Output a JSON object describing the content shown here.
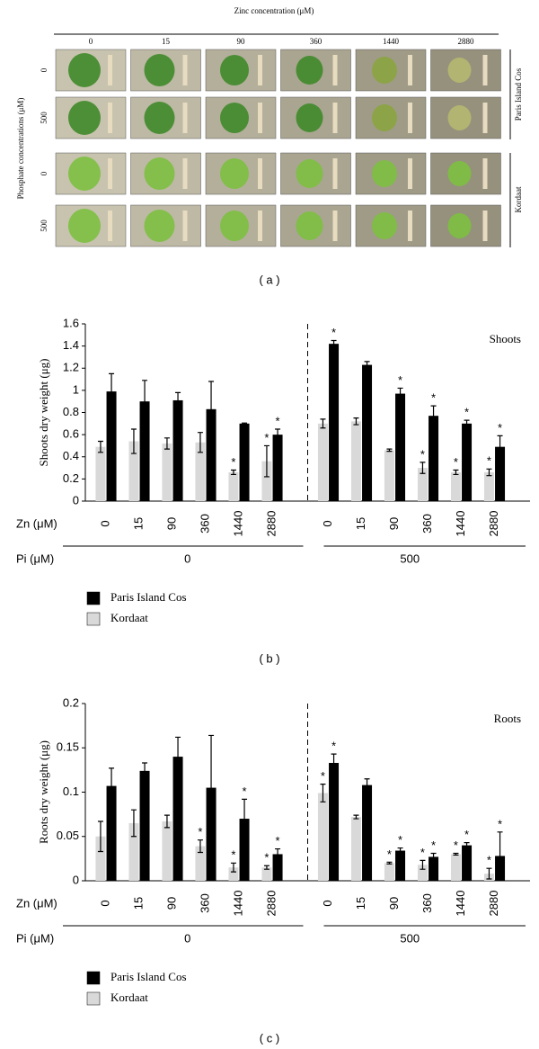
{
  "panel_a": {
    "title": "Zinc concentration (μM)",
    "columns": [
      "0",
      "15",
      "90",
      "360",
      "1440",
      "2880"
    ],
    "row_axis_label": "Phosphate concentrations (μM)",
    "rows": [
      "0",
      "500",
      "0",
      "500"
    ],
    "groups": [
      "Paris Island Cos",
      "Kordaat"
    ],
    "caption": "( a )"
  },
  "chart_data": [
    {
      "type": "bar",
      "ylabel": "Shoots dry weight (μg)",
      "annotation": "Shoots",
      "caption": "( b )",
      "x_label": "Zn (μM)",
      "group_axis_label": "Pi (μM)",
      "group_labels": [
        "0",
        "500"
      ],
      "categories": [
        "0",
        "15",
        "90",
        "360",
        "1440",
        "2880",
        "0",
        "15",
        "90",
        "360",
        "1440",
        "2880"
      ],
      "ylim": [
        0,
        1.6
      ],
      "yticks": [
        0,
        0.2,
        0.4,
        0.6,
        0.8,
        1,
        1.2,
        1.4,
        1.6
      ],
      "series": [
        {
          "name": "Paris Island Cos",
          "color": "#000000",
          "values": [
            0.99,
            0.9,
            0.91,
            0.83,
            0.7,
            0.6,
            1.42,
            1.23,
            0.97,
            0.77,
            0.7,
            0.49
          ],
          "errors": [
            0.16,
            0.19,
            0.07,
            0.25,
            0.005,
            0.05,
            0.03,
            0.03,
            0.05,
            0.09,
            0.03,
            0.1
          ],
          "markers": [
            null,
            null,
            null,
            null,
            null,
            "*",
            "*",
            null,
            "*",
            "*",
            "*",
            "*"
          ]
        },
        {
          "name": "Kordaat",
          "color": "#d9d9d9",
          "values": [
            0.49,
            0.54,
            0.52,
            0.53,
            0.26,
            0.36,
            0.7,
            0.72,
            0.46,
            0.3,
            0.26,
            0.26
          ],
          "errors": [
            0.05,
            0.11,
            0.05,
            0.09,
            0.02,
            0.14,
            0.04,
            0.03,
            0.01,
            0.05,
            0.02,
            0.03
          ],
          "markers": [
            null,
            null,
            null,
            null,
            "*",
            "*",
            null,
            null,
            null,
            "*",
            "*",
            "*"
          ]
        }
      ]
    },
    {
      "type": "bar",
      "ylabel": "Roots dry weight (μg)",
      "annotation": "Roots",
      "caption": "( c )",
      "x_label": "Zn (μM)",
      "group_axis_label": "Pi (μM)",
      "group_labels": [
        "0",
        "500"
      ],
      "categories": [
        "0",
        "15",
        "90",
        "360",
        "1440",
        "2880",
        "0",
        "15",
        "90",
        "360",
        "1440",
        "2880"
      ],
      "ylim": [
        0,
        0.2
      ],
      "yticks": [
        0,
        0.05,
        0.1,
        0.15,
        0.2
      ],
      "series": [
        {
          "name": "Paris Island Cos",
          "color": "#000000",
          "values": [
            0.107,
            0.124,
            0.14,
            0.105,
            0.07,
            0.03,
            0.133,
            0.108,
            0.034,
            0.027,
            0.04,
            0.028
          ],
          "errors": [
            0.02,
            0.009,
            0.022,
            0.059,
            0.022,
            0.006,
            0.01,
            0.007,
            0.003,
            0.004,
            0.003,
            0.027
          ],
          "markers": [
            null,
            null,
            null,
            null,
            "*",
            "*",
            "*",
            null,
            "*",
            "*",
            "*",
            "*"
          ]
        },
        {
          "name": "Kordaat",
          "color": "#d9d9d9",
          "values": [
            0.05,
            0.065,
            0.067,
            0.039,
            0.015,
            0.015,
            0.099,
            0.072,
            0.02,
            0.018,
            0.03,
            0.008
          ],
          "errors": [
            0.017,
            0.015,
            0.007,
            0.007,
            0.005,
            0.002,
            0.01,
            0.002,
            0.001,
            0.005,
            0.001,
            0.006
          ],
          "markers": [
            null,
            null,
            null,
            "*",
            "*",
            "*",
            "*",
            null,
            "*",
            "*",
            "*",
            "*"
          ]
        }
      ]
    }
  ]
}
